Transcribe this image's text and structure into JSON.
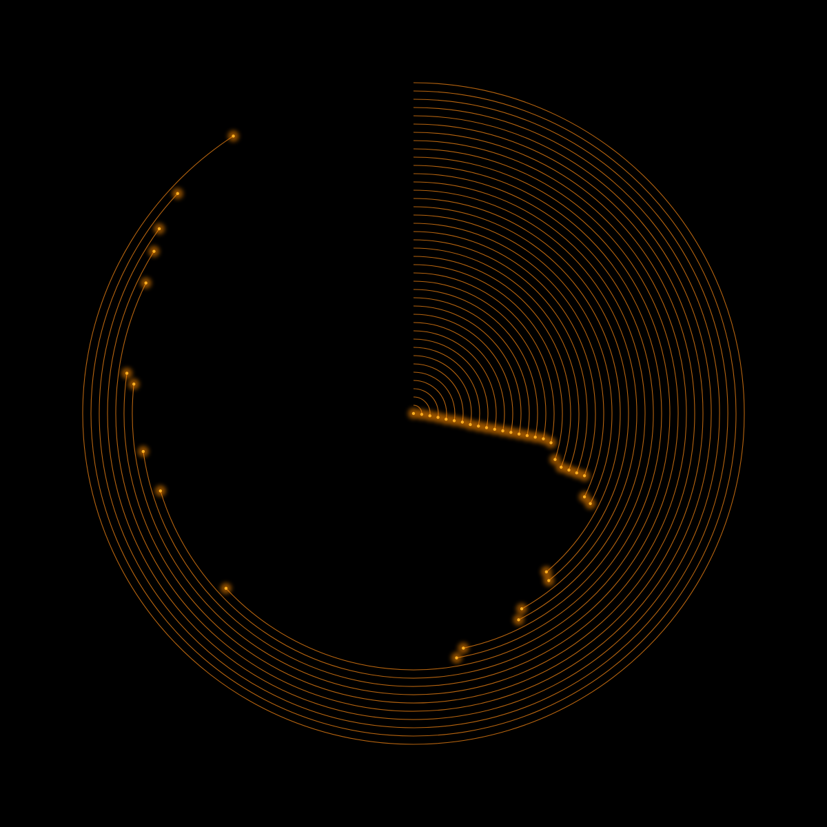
{
  "visualization": {
    "kind": "radial arc traces with glowing endpoint dots",
    "background_color": "#000000",
    "stroke_color": "#b8650f",
    "dot_color": "#ffb020",
    "glow_color": "#ff8c00",
    "ring_count": 40,
    "start_angle_deg_clockwise_from_top": 0,
    "end_angles_deg_clockwise_from_top": [
      96,
      98,
      99,
      100,
      100,
      100,
      101,
      101,
      101,
      101,
      101,
      101,
      101,
      101,
      101,
      101,
      102,
      108,
      110,
      110,
      110,
      110,
      116,
      117,
      140,
      141,
      151,
      153,
      168,
      170,
      227,
      253,
      262,
      276,
      278,
      296,
      302,
      306,
      313,
      327
    ]
  }
}
